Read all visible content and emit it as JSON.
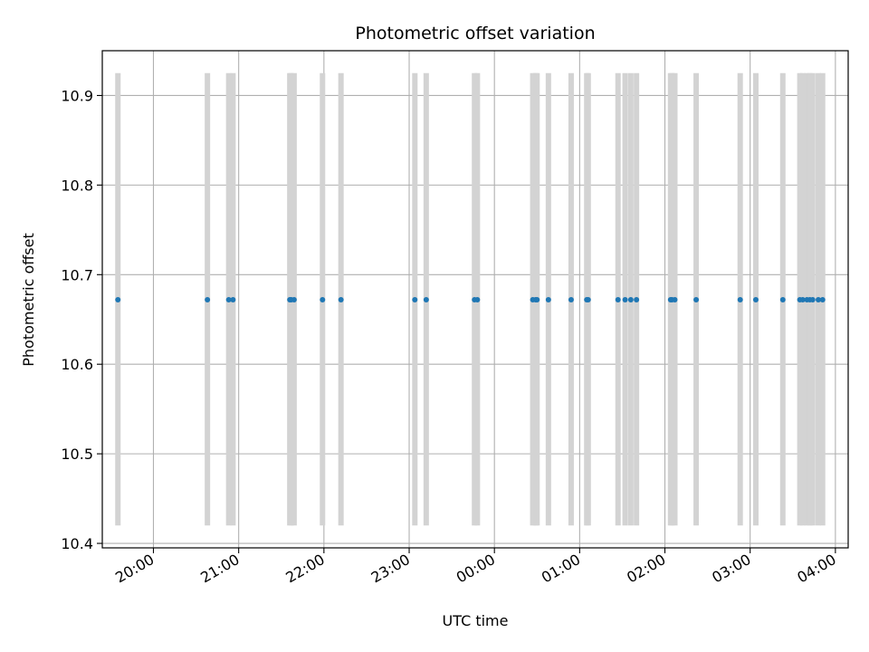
{
  "chart_data": {
    "type": "scatter",
    "title": "Photometric offset variation",
    "xlabel": "UTC time",
    "ylabel": "Photometric offset",
    "grid": true,
    "x_ticks": [
      "20:00",
      "21:00",
      "22:00",
      "23:00",
      "00:00",
      "01:00",
      "02:00",
      "03:00",
      "04:00"
    ],
    "y_ticks": [
      10.4,
      10.5,
      10.6,
      10.7,
      10.8,
      10.9
    ],
    "xlim": [
      "19:24",
      "04:09"
    ],
    "ylim": [
      10.395,
      10.95
    ],
    "exposure_span": [
      10.42,
      10.925
    ],
    "points": [
      {
        "time": "19:35",
        "value": 10.672
      },
      {
        "time": "20:38",
        "value": 10.672
      },
      {
        "time": "20:53",
        "value": 10.672
      },
      {
        "time": "20:56",
        "value": 10.672
      },
      {
        "time": "21:36",
        "value": 10.672
      },
      {
        "time": "21:37",
        "value": 10.672
      },
      {
        "time": "21:39",
        "value": 10.672
      },
      {
        "time": "21:59",
        "value": 10.672
      },
      {
        "time": "22:12",
        "value": 10.672
      },
      {
        "time": "23:04",
        "value": 10.672
      },
      {
        "time": "23:12",
        "value": 10.672
      },
      {
        "time": "23:46",
        "value": 10.672
      },
      {
        "time": "23:48",
        "value": 10.672
      },
      {
        "time": "00:27",
        "value": 10.672
      },
      {
        "time": "00:29",
        "value": 10.672
      },
      {
        "time": "00:30",
        "value": 10.672
      },
      {
        "time": "00:38",
        "value": 10.672
      },
      {
        "time": "00:54",
        "value": 10.672
      },
      {
        "time": "01:05",
        "value": 10.672
      },
      {
        "time": "01:06",
        "value": 10.672
      },
      {
        "time": "01:27",
        "value": 10.672
      },
      {
        "time": "01:32",
        "value": 10.672
      },
      {
        "time": "01:36",
        "value": 10.672
      },
      {
        "time": "01:40",
        "value": 10.672
      },
      {
        "time": "02:04",
        "value": 10.672
      },
      {
        "time": "02:05",
        "value": 10.672
      },
      {
        "time": "02:07",
        "value": 10.672
      },
      {
        "time": "02:22",
        "value": 10.672
      },
      {
        "time": "02:53",
        "value": 10.672
      },
      {
        "time": "03:04",
        "value": 10.672
      },
      {
        "time": "03:23",
        "value": 10.672
      },
      {
        "time": "03:35",
        "value": 10.672
      },
      {
        "time": "03:37",
        "value": 10.672
      },
      {
        "time": "03:40",
        "value": 10.672
      },
      {
        "time": "03:42",
        "value": 10.672
      },
      {
        "time": "03:44",
        "value": 10.672
      },
      {
        "time": "03:48",
        "value": 10.672
      },
      {
        "time": "03:51",
        "value": 10.672
      }
    ],
    "colors": {
      "points": "#1f77b4",
      "exposure_bars": "#d3d3d3",
      "grid": "#b0b0b0",
      "axes": "#000000"
    }
  }
}
